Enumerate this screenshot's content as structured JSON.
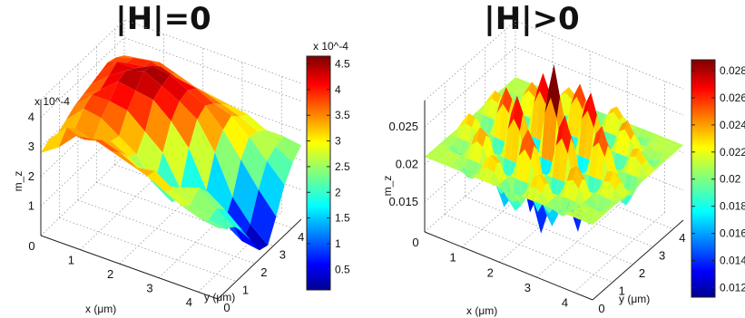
{
  "chart_data": [
    {
      "type": "surface",
      "title": "|H|=0",
      "xlabel": "x (μm)",
      "ylabel": "y (μm)",
      "zlabel": "m_z",
      "z_scale_label": "x 10^-4",
      "x_ticks": [
        "0",
        "1",
        "2",
        "3",
        "4"
      ],
      "y_ticks": [
        "0",
        "1",
        "2",
        "3",
        "4"
      ],
      "z_ticks": [
        "0",
        "1",
        "2",
        "3",
        "4"
      ],
      "xlim": [
        0,
        5
      ],
      "ylim": [
        0,
        5
      ],
      "zlim": [
        0,
        4.6
      ],
      "grid": true,
      "colorbar": {
        "scale_label": "x 10^-4",
        "ticks": [
          "0.5",
          "1",
          "1.5",
          "2",
          "2.5",
          "3",
          "3.5",
          "4",
          "4.5"
        ],
        "range": [
          0.1,
          4.65
        ]
      },
      "z_values": [
        [
          2.8,
          3.0,
          2.9,
          3.1,
          3.3,
          3.4,
          3.5,
          3.6,
          3.7,
          3.6,
          3.4
        ],
        [
          3.2,
          3.6,
          3.3,
          3.7,
          3.9,
          3.8,
          4.0,
          4.2,
          3.9,
          3.8,
          3.5
        ],
        [
          3.8,
          3.4,
          3.1,
          3.6,
          3.9,
          4.3,
          4.4,
          4.2,
          4.0,
          3.9,
          3.6
        ],
        [
          3.9,
          3.6,
          3.3,
          3.2,
          3.8,
          4.2,
          4.6,
          4.5,
          4.2,
          3.7,
          3.4
        ],
        [
          3.7,
          3.4,
          3.0,
          2.8,
          3.3,
          4.1,
          4.3,
          4.4,
          4.0,
          3.6,
          3.2
        ],
        [
          3.5,
          3.1,
          2.6,
          2.0,
          2.8,
          3.6,
          4.0,
          4.1,
          3.9,
          3.5,
          3.1
        ],
        [
          3.3,
          3.2,
          2.4,
          1.6,
          1.8,
          2.9,
          3.6,
          3.8,
          3.6,
          3.3,
          3.0
        ],
        [
          3.0,
          2.8,
          2.6,
          2.2,
          1.3,
          1.7,
          2.7,
          3.2,
          3.4,
          3.1,
          2.9
        ],
        [
          2.7,
          2.5,
          2.8,
          2.4,
          1.5,
          0.8,
          1.4,
          2.4,
          2.9,
          2.8,
          2.6
        ],
        [
          2.5,
          2.2,
          2.3,
          2.0,
          1.2,
          0.4,
          0.7,
          1.6,
          2.3,
          2.5,
          2.6
        ],
        [
          2.4,
          2.1,
          1.9,
          1.5,
          0.9,
          0.3,
          0.2,
          0.9,
          1.7,
          2.2,
          2.5
        ]
      ]
    },
    {
      "type": "surface",
      "title": "|H|>0",
      "xlabel": "x (μm)",
      "ylabel": "y (μm)",
      "zlabel": "m_z",
      "x_ticks": [
        "0",
        "1",
        "2",
        "3",
        "4"
      ],
      "y_ticks": [
        "0",
        "1",
        "2",
        "3",
        "4"
      ],
      "z_ticks": [
        "0.015",
        "0.02",
        "0.025"
      ],
      "xlim": [
        0,
        5
      ],
      "ylim": [
        0,
        5
      ],
      "zlim": [
        0.011,
        0.0285
      ],
      "grid": true,
      "colorbar": {
        "ticks": [
          "0.012",
          "0.014",
          "0.016",
          "0.018",
          "0.02",
          "0.022",
          "0.024",
          "0.026",
          "0.028"
        ],
        "range": [
          0.0113,
          0.0288
        ]
      },
      "z_center": 0.021,
      "z_amplitude": 0.0075,
      "oscillations_per_axis": 7
    }
  ]
}
